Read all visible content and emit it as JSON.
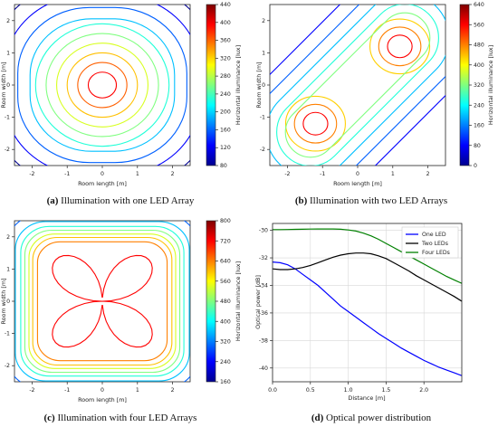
{
  "chart_data": [
    {
      "id": "a",
      "type": "contour",
      "caption_letter": "(a)",
      "caption_text": "Illumination with one LED Array",
      "xlabel": "Room length [m]",
      "ylabel": "Room width [m]",
      "colorbar_label": "Horizontal illuminance [lux]",
      "xlim": [
        -2.5,
        2.5
      ],
      "ylim": [
        -2.5,
        2.5
      ],
      "xticks": [
        "-2",
        "-1",
        "0",
        "1",
        "2"
      ],
      "yticks": [
        "-2",
        "-1",
        "0",
        "1",
        "2"
      ],
      "colorbar_ticks": [
        "80",
        "120",
        "160",
        "200",
        "240",
        "280",
        "320",
        "360",
        "400",
        "440"
      ],
      "sources": [
        [
          0,
          0
        ]
      ]
    },
    {
      "id": "b",
      "type": "contour",
      "caption_letter": "(b)",
      "caption_text": "Illumination with two LED Arrays",
      "xlabel": "Room length [m]",
      "ylabel": "Room width [m]",
      "colorbar_label": "Horizontal illuminance [lux]",
      "xlim": [
        -2.5,
        2.5
      ],
      "ylim": [
        -2.5,
        2.5
      ],
      "xticks": [
        "-2",
        "-1",
        "0",
        "1",
        "2"
      ],
      "yticks": [
        "-2",
        "-1",
        "0",
        "1",
        "2"
      ],
      "colorbar_ticks": [
        "0",
        "80",
        "160",
        "240",
        "320",
        "400",
        "480",
        "560",
        "640"
      ],
      "sources": [
        [
          -1.2,
          -1.2
        ],
        [
          1.2,
          1.2
        ]
      ]
    },
    {
      "id": "c",
      "type": "contour",
      "caption_letter": "(c)",
      "caption_text": "Illumination with four LED Arrays",
      "xlabel": "Room length [m]",
      "ylabel": "Room width [m]",
      "colorbar_label": "Horizontal illuminance [lux]",
      "xlim": [
        -2.5,
        2.5
      ],
      "ylim": [
        -2.5,
        2.5
      ],
      "xticks": [
        "-2",
        "-1",
        "0",
        "1",
        "2"
      ],
      "yticks": [
        "-2",
        "-1",
        "0",
        "1",
        "2"
      ],
      "colorbar_ticks": [
        "160",
        "240",
        "320",
        "400",
        "480",
        "560",
        "640",
        "720",
        "800"
      ],
      "sources": [
        [
          -1.2,
          -1.2
        ],
        [
          1.2,
          1.2
        ],
        [
          -1.2,
          1.2
        ],
        [
          1.2,
          -1.2
        ]
      ]
    },
    {
      "id": "d",
      "type": "line",
      "caption_letter": "(d)",
      "caption_text": "Optical power distribution",
      "xlabel": "Distance [m]",
      "ylabel": "Optical power [dB]",
      "xlim": [
        0,
        2.5
      ],
      "ylim": [
        -41,
        -29.5
      ],
      "xticks": [
        "0.0",
        "0.5",
        "1.0",
        "1.5",
        "2.0"
      ],
      "yticks": [
        "-40",
        "-38",
        "-36",
        "-34",
        "-32",
        "-30"
      ],
      "grid": true,
      "legend_position": "top-right",
      "x": [
        0.0,
        0.1,
        0.2,
        0.3,
        0.4,
        0.5,
        0.6,
        0.7,
        0.8,
        0.9,
        1.0,
        1.1,
        1.2,
        1.3,
        1.4,
        1.5,
        1.6,
        1.7,
        1.8,
        1.9,
        2.0,
        2.1,
        2.2,
        2.3,
        2.4,
        2.5
      ],
      "series": [
        {
          "name": "One LED",
          "color": "#0000ff",
          "values": [
            -32.3,
            -32.35,
            -32.5,
            -32.8,
            -33.2,
            -33.6,
            -34.0,
            -34.5,
            -35.0,
            -35.5,
            -35.9,
            -36.3,
            -36.7,
            -37.1,
            -37.5,
            -37.85,
            -38.2,
            -38.55,
            -38.85,
            -39.15,
            -39.45,
            -39.7,
            -39.95,
            -40.15,
            -40.35,
            -40.55
          ]
        },
        {
          "name": "Two LEDs",
          "color": "#000000",
          "values": [
            -32.8,
            -32.85,
            -32.85,
            -32.8,
            -32.7,
            -32.55,
            -32.35,
            -32.15,
            -31.95,
            -31.8,
            -31.7,
            -31.65,
            -31.65,
            -31.7,
            -31.85,
            -32.05,
            -32.35,
            -32.65,
            -32.95,
            -33.3,
            -33.6,
            -33.9,
            -34.2,
            -34.5,
            -34.8,
            -35.15
          ]
        },
        {
          "name": "Four LEDs",
          "color": "#008000",
          "values": [
            -29.95,
            -29.95,
            -29.94,
            -29.93,
            -29.92,
            -29.91,
            -29.9,
            -29.9,
            -29.9,
            -29.92,
            -29.97,
            -30.05,
            -30.2,
            -30.4,
            -30.65,
            -30.95,
            -31.25,
            -31.55,
            -31.85,
            -32.15,
            -32.45,
            -32.75,
            -33.05,
            -33.35,
            -33.6,
            -33.85
          ]
        }
      ]
    }
  ]
}
